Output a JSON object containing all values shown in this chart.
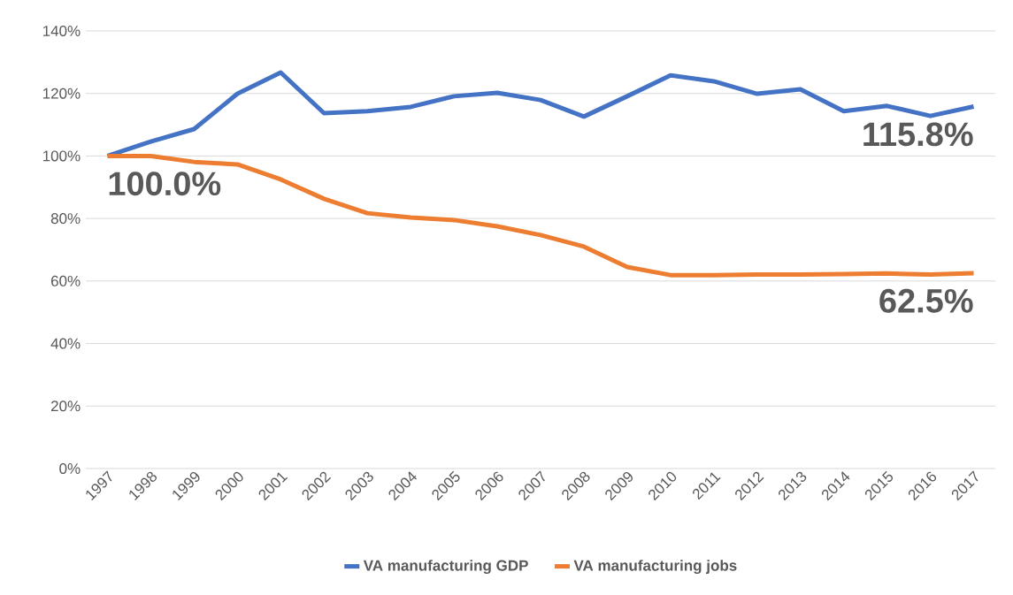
{
  "chart_data": {
    "type": "line",
    "categories": [
      "1997",
      "1998",
      "1999",
      "2000",
      "2001",
      "2002",
      "2003",
      "2004",
      "2005",
      "2006",
      "2007",
      "2008",
      "2009",
      "2010",
      "2011",
      "2012",
      "2013",
      "2014",
      "2015",
      "2016",
      "2017"
    ],
    "series": [
      {
        "name": "VA manufacturing GDP",
        "color": "#4472c4",
        "values": [
          100,
          104.6,
          108.6,
          119.9,
          126.7,
          113.7,
          114.3,
          115.7,
          119.1,
          120.2,
          117.9,
          112.6,
          119.1,
          125.8,
          123.9,
          119.9,
          121.3,
          114.3,
          116.0,
          112.8,
          115.8
        ]
      },
      {
        "name": "VA manufacturing jobs",
        "color": "#ed7d31",
        "values": [
          100,
          100,
          98.1,
          97.3,
          92.5,
          86.3,
          81.7,
          80.3,
          79.5,
          77.5,
          74.7,
          71.0,
          64.5,
          61.9,
          61.9,
          62.1,
          62.1,
          62.2,
          62.4,
          62.1,
          62.5
        ]
      }
    ],
    "ylim": [
      0,
      140
    ],
    "yticks": [
      {
        "value": 0,
        "label": "0%"
      },
      {
        "value": 20,
        "label": "20%"
      },
      {
        "value": 40,
        "label": "40%"
      },
      {
        "value": 60,
        "label": "60%"
      },
      {
        "value": 80,
        "label": "80%"
      },
      {
        "value": 100,
        "label": "100%"
      },
      {
        "value": 120,
        "label": "120%"
      },
      {
        "value": 140,
        "label": "140%"
      }
    ],
    "grid": "y",
    "legend": "bottom",
    "marker": "none",
    "line_style": "solid",
    "annotations": [
      {
        "text": "100.0%",
        "x": "1997",
        "y": 100
      },
      {
        "text": "115.8%",
        "x": "2017",
        "y": 115.8
      },
      {
        "text": "62.5%",
        "x": "2017",
        "y": 62.5
      }
    ]
  }
}
